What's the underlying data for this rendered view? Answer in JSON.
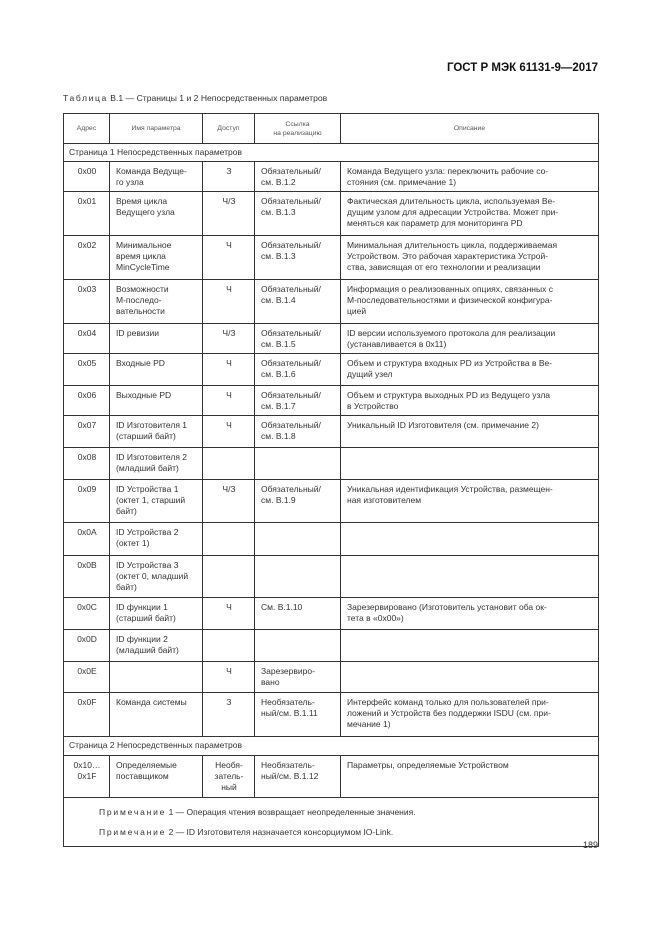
{
  "header": {
    "standard": "ГОСТ Р МЭК 61131-9—2017"
  },
  "caption": {
    "label": "Таблица",
    "text": "В.1 — Страницы 1 и 2 Непосредственных параметров"
  },
  "table": {
    "columns": [
      "Адрес",
      "Имя параметра",
      "Доступ",
      "Ссылка\nна реализацию",
      "Описание"
    ],
    "section1": "Страница 1 Непосредственных параметров",
    "rows1": [
      {
        "addr": "0x00",
        "name": "Команда Ведуще-\nго узла",
        "access": "З",
        "ref": "Обязательный/\nсм. В.1.2",
        "desc": "Команда Ведущего узла: переключить рабочие со-\nстояния (см. примечание 1)"
      },
      {
        "addr": "0x01",
        "name": "Время цикла\nВедущего узла",
        "access": "Ч/З",
        "ref": "Обязательный/\nсм. В.1.3",
        "desc": "Фактическая длительность цикла, используемая Ве-\nдущим узлом для адресации Устройства. Может при-\nменяться как параметр для мониторинга PD"
      },
      {
        "addr": "0x02",
        "name": "Минимальное\nвремя цикла\nMinCycleTime",
        "access": "Ч",
        "ref": "Обязательный/\nсм. В.1.3",
        "desc": "Минимальная длительность цикла, поддерживаемая\nУстройством. Это рабочая характеристика Устрой-\nства, зависящая от его технологии и реализации"
      },
      {
        "addr": "0x03",
        "name": "Возможности\nM-последо-\nвательности",
        "access": "Ч",
        "ref": "Обязательный/\nсм. В.1.4",
        "desc": "Информация о реализованных опциях, связанных с\nM-последовательностями и физической конфигура-\nцией"
      },
      {
        "addr": "0x04",
        "name": "ID ревизии",
        "access": "Ч/З",
        "ref": "Обязательный/\nсм. В.1.5",
        "desc": "ID версии используемого протокола для реализации\n(устанавливается в 0x11)"
      },
      {
        "addr": "0x05",
        "name": "Входные PD",
        "access": "Ч",
        "ref": "Обязательный/\nсм. В.1.6",
        "desc": "Объем и структура входных PD из Устройства в Ве-\nдущий узел"
      },
      {
        "addr": "0x06",
        "name": "Выходные PD",
        "access": "Ч",
        "ref": "Обязательный/\nсм. В.1.7",
        "desc": "Объем и структура выходных PD из Ведущего узла\nв Устройство"
      },
      {
        "addr": "0x07",
        "name": "ID Изготовителя 1\n(старший байт)",
        "access": "Ч",
        "ref": "Обязательный/\nсм. В.1.8",
        "desc": "Уникальный ID Изготовителя (см. примечание 2)"
      },
      {
        "addr": "0x08",
        "name": "ID Изготовителя 2\n(младший байт)",
        "access": "",
        "ref": "",
        "desc": ""
      },
      {
        "addr": "0x09",
        "name": "ID Устройства 1\n(октет 1, старший\nбайт)",
        "access": "Ч/З",
        "ref": "Обязательный/\nсм. В.1.9",
        "desc": "Уникальная идентификация Устройства, размещен-\nная изготовителем"
      },
      {
        "addr": "0x0A",
        "name": "ID Устройства 2\n(октет 1)",
        "access": "",
        "ref": "",
        "desc": ""
      },
      {
        "addr": "0x0B",
        "name": "ID Устройства 3\n(октет 0, младший\nбайт)",
        "access": "",
        "ref": "",
        "desc": ""
      },
      {
        "addr": "0x0C",
        "name": "ID функции 1\n(старший байт)",
        "access": "Ч",
        "ref": "См. В.1.10",
        "desc": "Зарезервировано (Изготовитель установит оба ок-\nтета в «0x00»)"
      },
      {
        "addr": "0x0D",
        "name": "ID функции 2\n(младший байт)",
        "access": "",
        "ref": "",
        "desc": ""
      },
      {
        "addr": "0x0E",
        "name": "",
        "access": "Ч",
        "ref": "Зарезервиро-\nвано",
        "desc": ""
      },
      {
        "addr": "0x0F",
        "name": "Команда системы",
        "access": "З",
        "ref": "Необязатель-\nный/см. В.1.11",
        "desc": "Интерфейс команд только для пользователей при-\nложений и Устройств без поддержки ISDU (см. при-\nмечание 1)"
      }
    ],
    "section2": "Страница 2 Непосредственных параметров",
    "rows2": [
      {
        "addr": "0x10…\n0x1F",
        "name": "Определяемые\nпоставщиком",
        "access": "Необя-\nзатель-\nный",
        "ref": "Необязатель-\nный/см. В.1.12",
        "desc": "Параметры, определяемые Устройством"
      }
    ],
    "notes": [
      {
        "label": "Примечание",
        "text": " 1 — Операция чтения возвращает неопределенные значения."
      },
      {
        "label": "Примечание",
        "text": " 2 — ID Изготовителя назначается консорциумом IO-Link."
      }
    ]
  },
  "page_number": "189"
}
